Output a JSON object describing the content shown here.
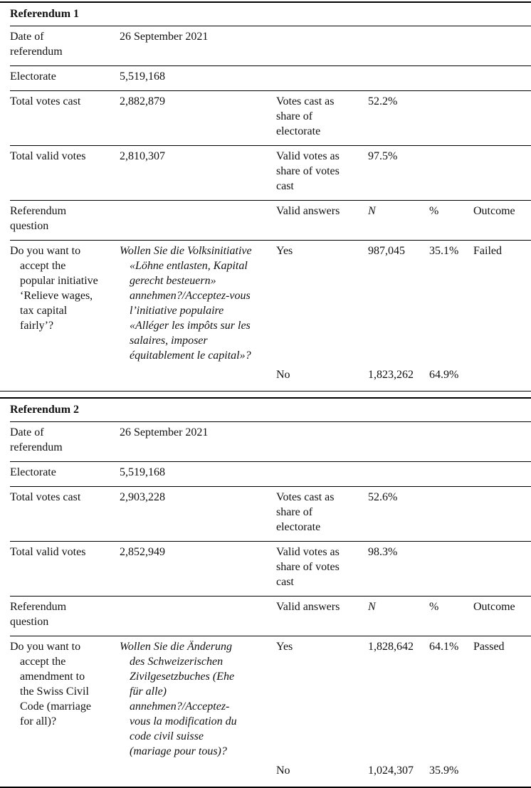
{
  "page": {
    "background": "#ffffff",
    "text_color": "#111111",
    "rule_color": "#000000"
  },
  "referendums": [
    {
      "title": "Referendum 1",
      "date": {
        "label": "Date of\nreferendum",
        "value": "26 September 2021"
      },
      "electorate": {
        "label": "Electorate",
        "value": "5,519,168"
      },
      "votes_cast": {
        "label": "Total votes cast",
        "value": "2,882,879",
        "share_label": "Votes cast as\nshare of\nelectorate",
        "share_value": "52.2%"
      },
      "valid_votes": {
        "label": "Total valid votes",
        "value": "2,810,307",
        "share_label": "Valid votes as\nshare of votes\ncast",
        "share_value": "97.5%"
      },
      "question_header": {
        "label": "Referendum\nquestion",
        "valid_answers": "Valid answers",
        "n": "N",
        "pct": "%",
        "outcome": "Outcome"
      },
      "question": {
        "english": "Do you want to\naccept the\npopular initiative\n‘Relieve wages,\ntax capital\nfairly’?",
        "original": "Wollen Sie die Volksinitiative\n«Löhne entlasten, Kapital\ngerecht besteuern»\nannehmen?/Acceptez-vous\nl’initiative populaire\n«Alléger les impôts sur les\nsalaires, imposer\néquitablement le capital»?"
      },
      "yes": {
        "label": "Yes",
        "n": "987,045",
        "pct": "35.1%",
        "outcome": "Failed"
      },
      "no": {
        "label": "No",
        "n": "1,823,262",
        "pct": "64.9%"
      }
    },
    {
      "title": "Referendum 2",
      "date": {
        "label": "Date of\nreferendum",
        "value": "26 September 2021"
      },
      "electorate": {
        "label": "Electorate",
        "value": "5,519,168"
      },
      "votes_cast": {
        "label": "Total votes cast",
        "value": "2,903,228",
        "share_label": "Votes cast as\nshare of\nelectorate",
        "share_value": "52.6%"
      },
      "valid_votes": {
        "label": "Total valid votes",
        "value": "2,852,949",
        "share_label": "Valid votes as\nshare of votes\ncast",
        "share_value": "98.3%"
      },
      "question_header": {
        "label": "Referendum\nquestion",
        "valid_answers": "Valid answers",
        "n": "N",
        "pct": "%",
        "outcome": "Outcome"
      },
      "question": {
        "english": "Do you want to\naccept the\namendment to\nthe Swiss Civil\nCode (marriage\nfor all)?",
        "original": "Wollen Sie die Änderung\ndes Schweizerischen\nZivilgesetzbuches (Ehe\nfür alle)\nannehmen?/Acceptez-\nvous la modification du\ncode civil suisse\n(mariage pour tous)?"
      },
      "yes": {
        "label": "Yes",
        "n": "1,828,642",
        "pct": "64.1%",
        "outcome": "Passed"
      },
      "no": {
        "label": "No",
        "n": "1,024,307",
        "pct": "35.9%"
      }
    }
  ]
}
